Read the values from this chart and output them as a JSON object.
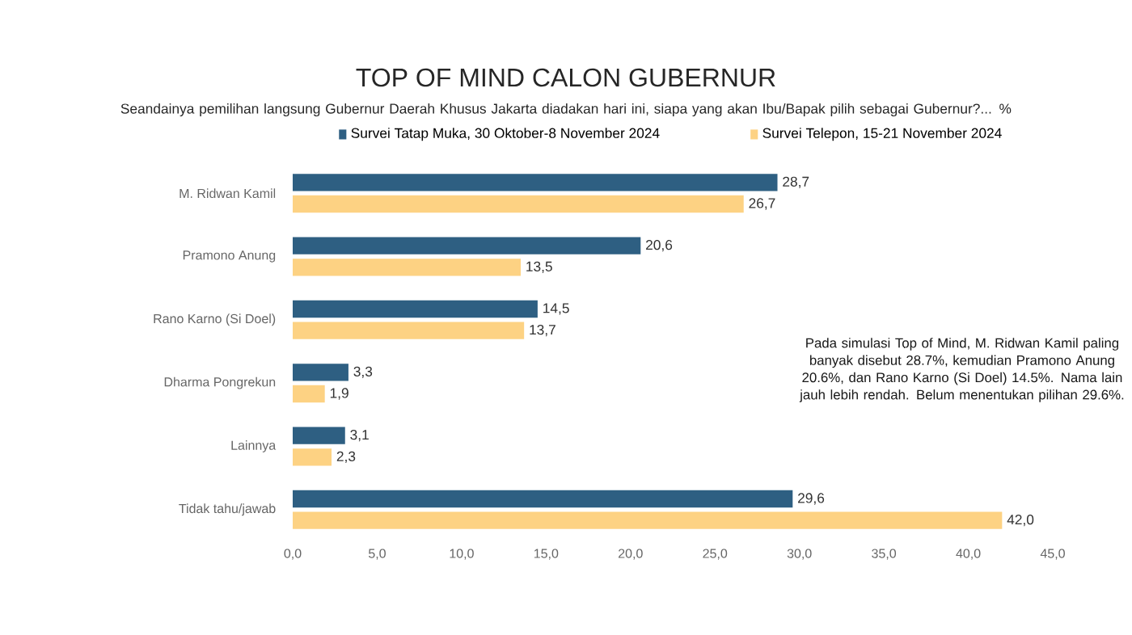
{
  "chart_data": {
    "type": "bar",
    "orientation": "horizontal",
    "title": "TOP OF MIND CALON GUBERNUR",
    "subtitle": "Seandainya pemilihan langsung Gubernur Daerah Khusus Jakarta diadakan hari ini, siapa yang akan Ibu/Bapak pilih sebagai Gubernur?... %",
    "categories": [
      "M. Ridwan Kamil",
      "Pramono Anung",
      "Rano Karno (Si Doel)",
      "Dharma Pongrekun",
      "Lainnya",
      "Tidak tahu/jawab"
    ],
    "series": [
      {
        "name": "Survei Tatap Muka, 30 Oktober-8 November 2024",
        "color": "#2e5f82",
        "values": [
          28.7,
          20.6,
          14.5,
          3.3,
          3.1,
          29.6
        ],
        "value_labels": [
          "28,7",
          "20,6",
          "14,5",
          "3,3",
          "3,1",
          "29,6"
        ]
      },
      {
        "name": "Survei Telepon, 15-21 November 2024",
        "color": "#fdd283",
        "values": [
          26.7,
          13.5,
          13.7,
          1.9,
          2.3,
          42.0
        ],
        "value_labels": [
          "26,7",
          "13,5",
          "13,7",
          "1,9",
          "2,3",
          "42,0"
        ]
      }
    ],
    "xlim": [
      0,
      45
    ],
    "xticks": [
      {
        "value": 0,
        "label": "0,0"
      },
      {
        "value": 5,
        "label": "5,0"
      },
      {
        "value": 10,
        "label": "10,0"
      },
      {
        "value": 15,
        "label": "15,0"
      },
      {
        "value": 20,
        "label": "20,0"
      },
      {
        "value": 25,
        "label": "25,0"
      },
      {
        "value": 30,
        "label": "30,0"
      },
      {
        "value": 35,
        "label": "35,0"
      },
      {
        "value": 40,
        "label": "40,0"
      },
      {
        "value": 45,
        "label": "45,0"
      }
    ],
    "legend": "top",
    "annotations": [
      "Pada simulasi Top of Mind, M. Ridwan Kamil paling banyak disebut 28.7%, kemudian Pramono Anung 20.6%, dan Rano Karno (Si Doel) 14.5%. Nama lain jauh lebih rendah. Belum menentukan pilihan 29.6%."
    ]
  }
}
